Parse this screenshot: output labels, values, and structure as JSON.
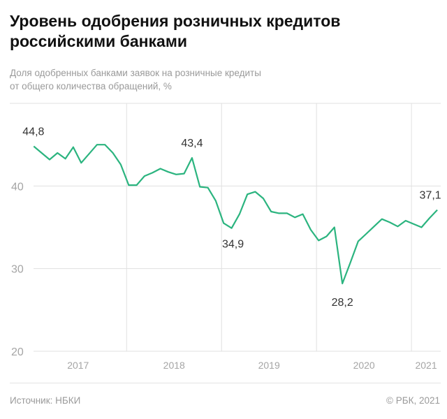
{
  "title": "Уровень одобрения розничных кредитов российскими банками",
  "subtitle_lines": [
    "Доля одобренных банками заявок на розничные кредиты",
    "от общего количества обращений, %"
  ],
  "source": "Источник: НБКИ",
  "copyright": "© РБК, 2021",
  "colors": {
    "line": "#2bb47f",
    "grid": "#e0e0e0",
    "text": "#9a9a9a"
  },
  "chart_data": {
    "type": "line",
    "x_start": "2017-01",
    "x_end": "2021-04",
    "frequency": "monthly",
    "ylim": [
      20,
      50
    ],
    "yticks": [
      20,
      30,
      40
    ],
    "ytick_labels": [
      "20",
      "30",
      "40"
    ],
    "xtick_labels": [
      "2017",
      "2018",
      "2019",
      "2020",
      "2021"
    ],
    "grid": true,
    "values": [
      44.8,
      44.0,
      43.2,
      44.0,
      43.3,
      44.7,
      42.8,
      43.9,
      45.0,
      45.0,
      44.0,
      42.6,
      40.1,
      40.1,
      41.2,
      41.6,
      42.1,
      41.7,
      41.4,
      41.5,
      43.4,
      39.9,
      39.8,
      38.2,
      35.5,
      34.9,
      36.6,
      39.0,
      39.3,
      38.5,
      36.9,
      36.7,
      36.7,
      36.2,
      36.6,
      34.7,
      33.4,
      33.9,
      35.0,
      28.2,
      30.7,
      33.3,
      34.2,
      35.1,
      36.0,
      35.6,
      35.1,
      35.8,
      35.4,
      35.0,
      36.1,
      37.1
    ],
    "annotations": [
      {
        "index": 0,
        "label": "44,8"
      },
      {
        "index": 20,
        "label": "43,4"
      },
      {
        "index": 25,
        "label": "34,9"
      },
      {
        "index": 39,
        "label": "28,2"
      },
      {
        "index": 51,
        "label": "37,1"
      }
    ]
  }
}
